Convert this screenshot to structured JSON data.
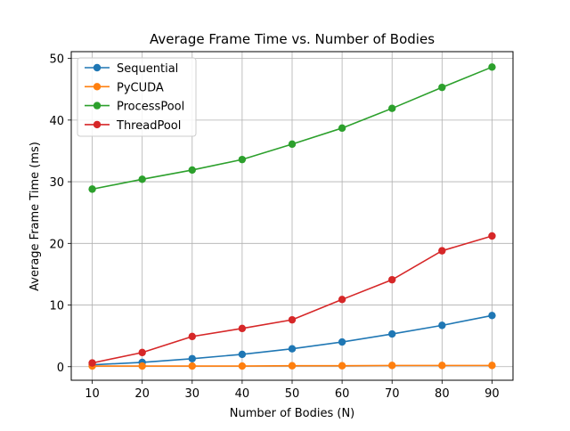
{
  "chart_data": {
    "type": "line",
    "title": "Average Frame Time vs. Number of Bodies",
    "xlabel": "Number of Bodies (N)",
    "ylabel": "Average Frame Time (ms)",
    "x": [
      10,
      20,
      30,
      40,
      50,
      60,
      70,
      80,
      90
    ],
    "xlim": [
      5.8,
      94.2
    ],
    "ylim": [
      -2.2,
      51.1
    ],
    "xticks": [
      10,
      20,
      30,
      40,
      50,
      60,
      70,
      80,
      90
    ],
    "yticks": [
      0,
      10,
      20,
      30,
      40,
      50
    ],
    "grid": true,
    "legend_position": "upper-left",
    "marker": "circle",
    "series": [
      {
        "name": "Sequential",
        "color": "#1f77b4",
        "values": [
          0.3,
          0.7,
          1.3,
          2.0,
          2.9,
          4.0,
          5.3,
          6.7,
          8.3
        ]
      },
      {
        "name": "PyCUDA",
        "color": "#ff7f0e",
        "values": [
          0.1,
          0.1,
          0.1,
          0.1,
          0.15,
          0.15,
          0.2,
          0.2,
          0.2
        ]
      },
      {
        "name": "ProcessPool",
        "color": "#2ca02c",
        "values": [
          28.8,
          30.4,
          31.9,
          33.6,
          36.1,
          38.7,
          41.9,
          45.3,
          48.6
        ]
      },
      {
        "name": "ThreadPool",
        "color": "#d62728",
        "values": [
          0.6,
          2.3,
          4.9,
          6.2,
          7.6,
          10.9,
          14.1,
          18.8,
          21.2
        ]
      }
    ]
  }
}
